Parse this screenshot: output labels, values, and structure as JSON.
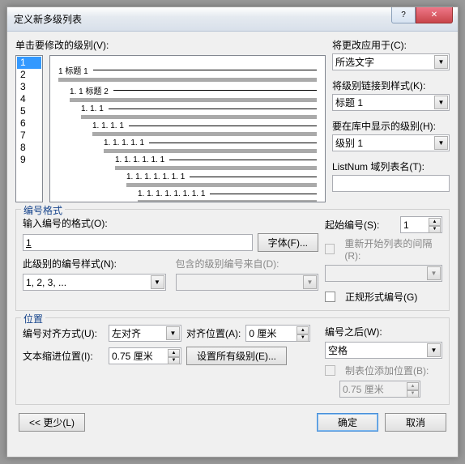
{
  "title": "定义新多级列表",
  "btn_help": "?",
  "btn_close": "✕",
  "click_level_label": "单击要修改的级别(V):",
  "levels": [
    "1",
    "2",
    "3",
    "4",
    "5",
    "6",
    "7",
    "8",
    "9"
  ],
  "selected_level": "1",
  "preview_rows": [
    {
      "indent": 0,
      "num": "1",
      "label": "标题 1"
    },
    {
      "indent": 1,
      "num": "1. 1",
      "label": "标题 2"
    },
    {
      "indent": 2,
      "num": "1. 1. 1",
      "label": ""
    },
    {
      "indent": 3,
      "num": "1. 1. 1. 1",
      "label": ""
    },
    {
      "indent": 4,
      "num": "1. 1. 1. 1. 1",
      "label": ""
    },
    {
      "indent": 5,
      "num": "1. 1. 1. 1. 1. 1",
      "label": ""
    },
    {
      "indent": 6,
      "num": "1. 1. 1. 1. 1. 1. 1",
      "label": ""
    },
    {
      "indent": 7,
      "num": "1. 1. 1. 1. 1. 1. 1. 1",
      "label": ""
    },
    {
      "indent": 8,
      "num": "1. 1. 1. 1. 1. 1. 1. 1. 1",
      "label": ""
    }
  ],
  "apply_changes_to_label": "将更改应用于(C):",
  "apply_changes_to_value": "所选文字",
  "link_level_to_style_label": "将级别链接到样式(K):",
  "link_level_to_style_value": "标题 1",
  "level_in_gallery_label": "要在库中显示的级别(H):",
  "level_in_gallery_value": "级别 1",
  "listnum_field_label": "ListNum 域列表名(T):",
  "listnum_field_value": "",
  "numfmt_section": "编号格式",
  "enter_format_label": "输入编号的格式(O):",
  "enter_format_value": "1",
  "font_btn": "字体(F)...",
  "this_level_number_style_label": "此级别的编号样式(N):",
  "this_level_number_style_value": "1, 2, 3, ...",
  "include_level_label": "包含的级别编号来自(D):",
  "include_level_value": "",
  "start_at_label": "起始编号(S):",
  "start_at_value": "1",
  "restart_after_label": "重新开始列表的间隔(R):",
  "restart_after_value": "",
  "legal_format_label": "正规形式编号(G)",
  "position_section": "位置",
  "number_alignment_label": "编号对齐方式(U):",
  "number_alignment_value": "左对齐",
  "aligned_at_label": "对齐位置(A):",
  "aligned_at_value": "0 厘米",
  "text_indent_label": "文本缩进位置(I):",
  "text_indent_value": "0.75 厘米",
  "set_for_all_btn": "设置所有级别(E)...",
  "follow_number_with_label": "编号之后(W):",
  "follow_number_with_value": "空格",
  "tab_stop_label": "制表位添加位置(B):",
  "tab_stop_value": "0.75 厘米",
  "less_btn": "<< 更少(L)",
  "ok_btn": "确定",
  "cancel_btn": "取消"
}
